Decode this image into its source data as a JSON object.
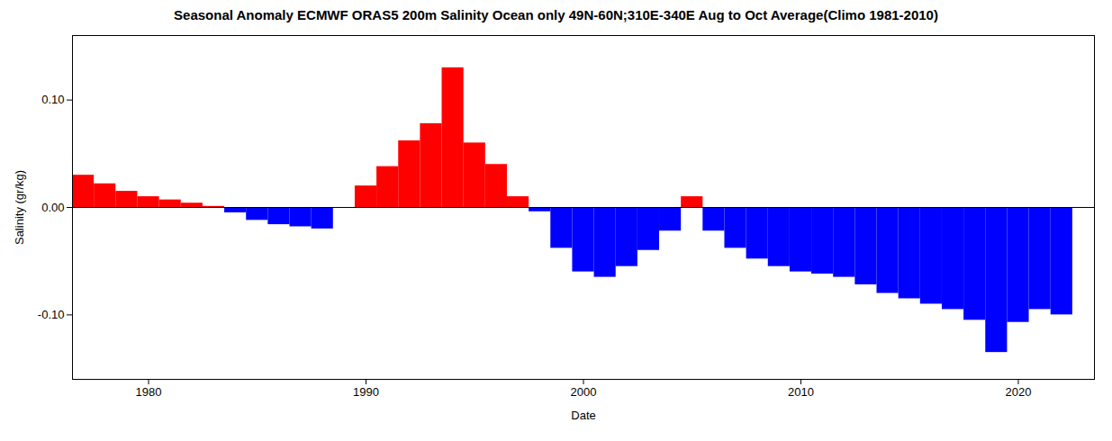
{
  "chart_data": {
    "type": "bar",
    "title": "Seasonal Anomaly ECMWF ORAS5 200m Salinity Ocean only 49N-60N;310E-340E Aug to Oct Average(Climo 1981-2010)",
    "xlabel": "Date",
    "ylabel": "Salinity (gr/kg)",
    "x": [
      1977,
      1978,
      1979,
      1980,
      1981,
      1982,
      1983,
      1984,
      1985,
      1986,
      1987,
      1988,
      1989,
      1990,
      1991,
      1992,
      1993,
      1994,
      1995,
      1996,
      1997,
      1998,
      1999,
      2000,
      2001,
      2002,
      2003,
      2004,
      2005,
      2006,
      2007,
      2008,
      2009,
      2010,
      2011,
      2012,
      2013,
      2014,
      2015,
      2016,
      2017,
      2018,
      2019,
      2020,
      2021,
      2022
    ],
    "values": [
      0.03,
      0.022,
      0.015,
      0.01,
      0.007,
      0.004,
      0.001,
      -0.005,
      -0.012,
      -0.016,
      -0.018,
      -0.02,
      0.0,
      0.02,
      0.038,
      0.062,
      0.078,
      0.13,
      0.06,
      0.04,
      0.01,
      -0.004,
      -0.038,
      -0.06,
      -0.065,
      -0.055,
      -0.04,
      -0.022,
      0.01,
      -0.022,
      -0.038,
      -0.048,
      -0.055,
      -0.06,
      -0.062,
      -0.065,
      -0.072,
      -0.08,
      -0.085,
      -0.09,
      -0.095,
      -0.105,
      -0.135,
      -0.107,
      -0.095,
      -0.1
    ],
    "colors": [
      "#FF0000",
      "#FF0000",
      "#FF0000",
      "#FF0000",
      "#FF0000",
      "#FF0000",
      "#FF0000",
      "#0000FF",
      "#0000FF",
      "#0000FF",
      "#0000FF",
      "#0000FF",
      "#FF0000",
      "#FF0000",
      "#FF0000",
      "#FF0000",
      "#FF0000",
      "#FF0000",
      "#FF0000",
      "#FF0000",
      "#FF0000",
      "#0000FF",
      "#0000FF",
      "#0000FF",
      "#0000FF",
      "#0000FF",
      "#0000FF",
      "#0000FF",
      "#FF0000",
      "#0000FF",
      "#0000FF",
      "#0000FF",
      "#0000FF",
      "#0000FF",
      "#0000FF",
      "#0000FF",
      "#0000FF",
      "#0000FF",
      "#0000FF",
      "#0000FF",
      "#0000FF",
      "#0000FF",
      "#0000FF",
      "#0000FF",
      "#0000FF",
      "#0000FF"
    ],
    "xlim": [
      1976.5,
      2023.5
    ],
    "xticks": [
      1980,
      1990,
      2000,
      2010,
      2020
    ],
    "ylim": [
      -0.16,
      0.16
    ],
    "yticks": [
      {
        "value": -0.1,
        "label": "-0.10"
      },
      {
        "value": 0.0,
        "label": "0.00"
      },
      {
        "value": 0.1,
        "label": "0.10"
      }
    ],
    "grid": false
  }
}
